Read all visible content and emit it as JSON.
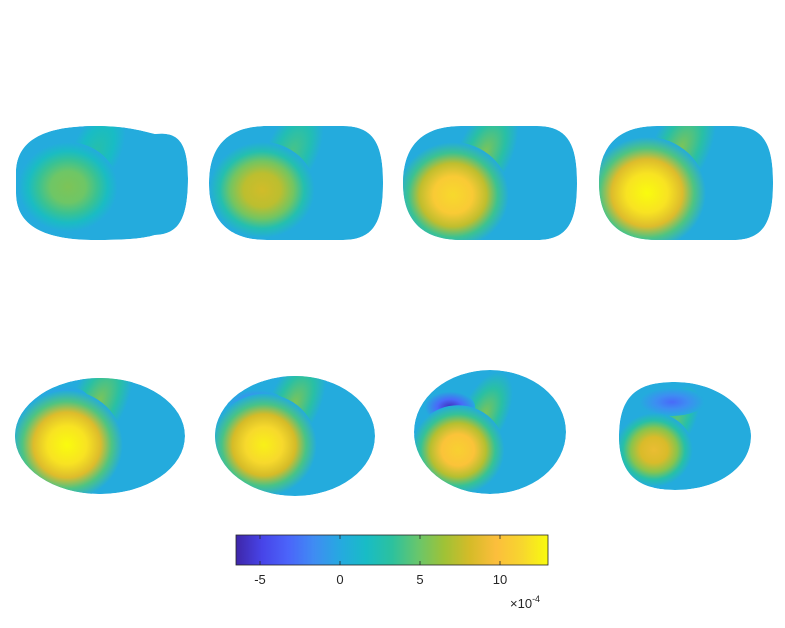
{
  "chart_data": {
    "type": "heatmap",
    "description_panels": [
      {
        "panel": 1,
        "blob_peak": 5.5,
        "neg_peak": 0,
        "shape": "notched"
      },
      {
        "panel": 2,
        "blob_peak": 8.0,
        "neg_peak": 0,
        "shape": "rounded-rect"
      },
      {
        "panel": 3,
        "blob_peak": 11.5,
        "neg_peak": 0,
        "shape": "rounded-rect"
      },
      {
        "panel": 4,
        "blob_peak": 13.0,
        "neg_peak": 0,
        "shape": "rounded-rect"
      },
      {
        "panel": 5,
        "blob_peak": 13.0,
        "neg_peak": -1.0,
        "shape": "ellipse"
      },
      {
        "panel": 6,
        "blob_peak": 12.5,
        "neg_peak": -3.0,
        "shape": "ellipse"
      },
      {
        "panel": 7,
        "blob_peak": 11.0,
        "neg_peak": -6.0,
        "shape": "ellipse"
      },
      {
        "panel": 8,
        "blob_peak": 9.0,
        "neg_peak": -3.0,
        "shape": "egg"
      }
    ],
    "colorbar": {
      "range": [
        -6.5,
        13
      ],
      "ticks": [
        -5,
        0,
        5,
        10
      ],
      "tick_labels": [
        "-5",
        "0",
        "5",
        "10"
      ],
      "exponent_base": "×10",
      "exponent_power": "-4"
    },
    "colormap": [
      "#3e26a8",
      "#4744e8",
      "#4b64fa",
      "#3f8cf3",
      "#26a9e0",
      "#18bcc6",
      "#2cc19e",
      "#68c66c",
      "#9fc236",
      "#d5bb28",
      "#fcbe3c",
      "#f7d62e",
      "#f9fb0e"
    ]
  }
}
